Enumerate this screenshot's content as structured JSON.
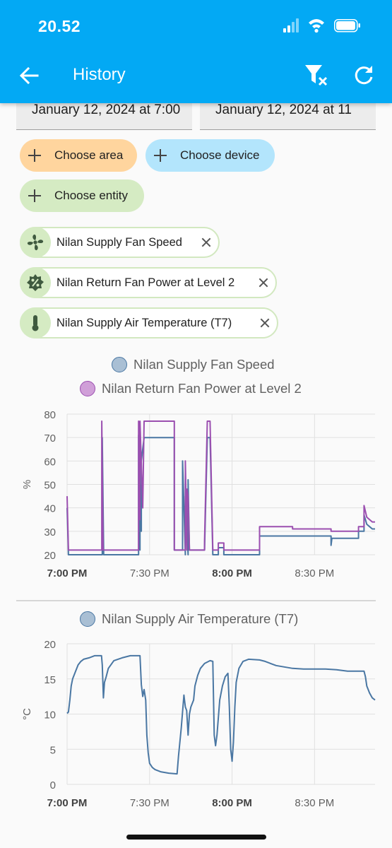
{
  "status_bar": {
    "time": "20.52"
  },
  "app_bar": {
    "title": "History"
  },
  "date_range": {
    "start": "January 12, 2024 at 7:00",
    "end": "January 12, 2024 at 11"
  },
  "target_pickers": [
    {
      "label": "Choose area",
      "color": "#ffd59e"
    },
    {
      "label": "Choose device",
      "color": "#b3e5fc"
    },
    {
      "label": "Choose entity",
      "color": "#d5ebc3"
    }
  ],
  "entities": [
    {
      "label": "Nilan Supply Fan Speed",
      "icon": "fan-icon"
    },
    {
      "label": "Nilan Return Fan Power at Level 2",
      "icon": "fan-percent-icon"
    },
    {
      "label": "Nilan Supply Air Temperature (T7)",
      "icon": "thermometer-icon"
    }
  ],
  "chart_data": [
    {
      "type": "line",
      "step": true,
      "ylabel": "%",
      "ylim": [
        20,
        80
      ],
      "yticks": [
        20,
        30,
        40,
        50,
        60,
        70,
        80
      ],
      "xtick_labels": [
        "7:00 PM",
        "7:30 PM",
        "8:00 PM",
        "8:30 PM"
      ],
      "xlim_minutes": [
        0,
        112
      ],
      "grid": true,
      "legend_position": "top",
      "series": [
        {
          "name": "Nilan Supply Fan Speed",
          "color": "#4a77a3",
          "fill": "#a9bfd4",
          "points": [
            [
              0,
              40
            ],
            [
              0.5,
              20
            ],
            [
              12.8,
              20
            ],
            [
              12.8,
              70
            ],
            [
              13.3,
              20
            ],
            [
              26,
              20
            ],
            [
              26,
              71
            ],
            [
              26.5,
              22
            ],
            [
              26.5,
              50
            ],
            [
              27,
              30
            ],
            [
              27,
              60
            ],
            [
              28,
              70
            ],
            [
              39,
              70
            ],
            [
              39,
              22
            ],
            [
              42,
              22
            ],
            [
              42,
              60
            ],
            [
              43,
              20
            ],
            [
              43,
              45
            ],
            [
              44,
              20
            ],
            [
              44,
              52
            ],
            [
              44.5,
              22
            ],
            [
              50,
              22
            ],
            [
              50,
              22
            ],
            [
              51,
              70
            ],
            [
              52,
              70
            ],
            [
              53,
              20
            ],
            [
              55,
              20
            ],
            [
              55,
              23
            ],
            [
              57,
              23
            ],
            [
              57,
              20
            ],
            [
              70,
              20
            ],
            [
              70,
              28
            ],
            [
              74,
              28
            ],
            [
              74,
              28
            ],
            [
              96,
              28
            ],
            [
              96,
              24
            ],
            [
              96.3,
              27
            ],
            [
              106,
              27
            ],
            [
              106,
              30
            ],
            [
              108,
              30
            ],
            [
              108,
              37
            ],
            [
              109,
              33
            ],
            [
              110,
              32
            ],
            [
              111,
              31
            ],
            [
              112,
              31
            ]
          ]
        },
        {
          "name": "Nilan Return Fan Power at Level 2",
          "color": "#9b4fb0",
          "fill": "#d09fd8",
          "points": [
            [
              0,
              45
            ],
            [
              0.5,
              22
            ],
            [
              12.6,
              22
            ],
            [
              12.6,
              77
            ],
            [
              13.1,
              22
            ],
            [
              26,
              22
            ],
            [
              26,
              77
            ],
            [
              26.5,
              35
            ],
            [
              26.5,
              77
            ],
            [
              27.5,
              40
            ],
            [
              28,
              77
            ],
            [
              39,
              77
            ],
            [
              39,
              22
            ],
            [
              43,
              22
            ],
            [
              43,
              60
            ],
            [
              43.6,
              22
            ],
            [
              43.6,
              48
            ],
            [
              44,
              45
            ],
            [
              44.5,
              22
            ],
            [
              50,
              22
            ],
            [
              50,
              26
            ],
            [
              51,
              77
            ],
            [
              52,
              77
            ],
            [
              53,
              22
            ],
            [
              55,
              22
            ],
            [
              55,
              25
            ],
            [
              57,
              25
            ],
            [
              57,
              22
            ],
            [
              70,
              22
            ],
            [
              70,
              32
            ],
            [
              82,
              32
            ],
            [
              82,
              31
            ],
            [
              96,
              31
            ],
            [
              96,
              30
            ],
            [
              106,
              30
            ],
            [
              106,
              32
            ],
            [
              108,
              32
            ],
            [
              108,
              41
            ],
            [
              109,
              36
            ],
            [
              110,
              35
            ],
            [
              111,
              34
            ],
            [
              112,
              34
            ]
          ]
        }
      ]
    },
    {
      "type": "line",
      "ylabel": "°C",
      "ylim": [
        0,
        20
      ],
      "yticks": [
        0,
        5,
        10,
        15,
        20
      ],
      "xtick_labels": [
        "7:00 PM",
        "7:30 PM",
        "8:00 PM",
        "8:30 PM"
      ],
      "xlim_minutes": [
        0,
        112
      ],
      "grid": true,
      "legend_position": "top",
      "series": [
        {
          "name": "Nilan Supply Air Temperature (T7)",
          "color": "#4a77a3",
          "fill": "#a9bfd4",
          "points": [
            [
              0,
              10.1
            ],
            [
              0.5,
              10.3
            ],
            [
              1,
              12
            ],
            [
              1.5,
              14
            ],
            [
              2,
              15
            ],
            [
              3,
              16
            ],
            [
              4,
              17
            ],
            [
              5,
              17.5
            ],
            [
              6,
              17.8
            ],
            [
              8,
              18
            ],
            [
              10,
              18.3
            ],
            [
              12.5,
              18.3
            ],
            [
              12.8,
              17
            ],
            [
              13.2,
              12.3
            ],
            [
              13.6,
              14.5
            ],
            [
              14.2,
              15.3
            ],
            [
              15,
              16.5
            ],
            [
              17,
              17.6
            ],
            [
              20,
              18
            ],
            [
              23,
              18.3
            ],
            [
              26.5,
              18.3
            ],
            [
              27,
              14.2
            ],
            [
              27.5,
              12.5
            ],
            [
              28,
              13.5
            ],
            [
              28.6,
              12
            ],
            [
              29,
              7
            ],
            [
              29.5,
              4.5
            ],
            [
              30,
              3
            ],
            [
              31,
              2.4
            ],
            [
              32,
              2.1
            ],
            [
              34,
              1.8
            ],
            [
              37,
              1.6
            ],
            [
              40,
              1.5
            ],
            [
              40.5,
              4
            ],
            [
              41.5,
              8
            ],
            [
              42.5,
              12.7
            ],
            [
              43,
              11
            ],
            [
              43.5,
              10.5
            ],
            [
              44,
              7
            ],
            [
              44.5,
              10
            ],
            [
              45,
              11
            ],
            [
              46,
              12
            ],
            [
              46.5,
              14
            ],
            [
              47.5,
              15.5
            ],
            [
              48.5,
              16.5
            ],
            [
              50,
              17.2
            ],
            [
              52,
              17.6
            ],
            [
              53,
              17.5
            ],
            [
              53.5,
              7
            ],
            [
              54,
              5.5
            ],
            [
              54.5,
              7
            ],
            [
              55.5,
              12
            ],
            [
              56.5,
              14
            ],
            [
              57.5,
              15.3
            ],
            [
              58.5,
              15.8
            ],
            [
              59,
              11
            ],
            [
              59.5,
              5
            ],
            [
              60,
              3.3
            ],
            [
              60.5,
              6
            ],
            [
              61,
              11
            ],
            [
              61.5,
              14.5
            ],
            [
              62.5,
              16.5
            ],
            [
              64,
              17.5
            ],
            [
              66,
              17.8
            ],
            [
              70,
              17.7
            ],
            [
              72,
              17.5
            ],
            [
              74,
              17.2
            ],
            [
              76,
              16.9
            ],
            [
              79,
              16.7
            ],
            [
              82,
              16.5
            ],
            [
              86,
              16.4
            ],
            [
              90,
              16.4
            ],
            [
              94,
              16.4
            ],
            [
              98,
              16.3
            ],
            [
              100,
              16.2
            ],
            [
              102,
              16.1
            ],
            [
              108,
              16.1
            ],
            [
              108.5,
              15.3
            ],
            [
              109,
              14
            ],
            [
              110,
              13
            ],
            [
              111,
              12.3
            ],
            [
              112,
              12
            ]
          ]
        }
      ]
    }
  ]
}
